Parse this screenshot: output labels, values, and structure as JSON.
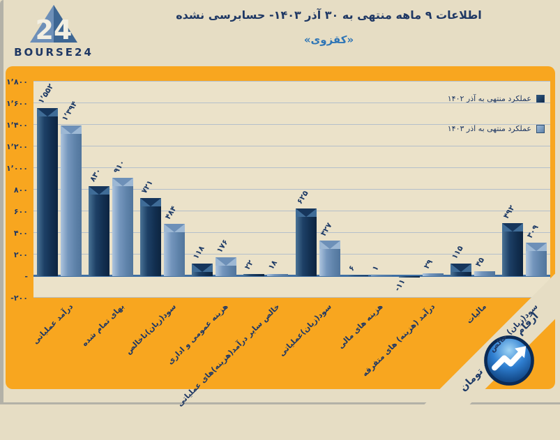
{
  "header": {
    "title": "اطلاعات ۹  ماهه منتهی به ۳۰ آذر ۱۴۰۳- حسابرسی نشده",
    "subtitle": "«کقزوی»",
    "logo_brand": "BOURSE24",
    "logo_mark": "24"
  },
  "chart_data": {
    "type": "bar",
    "title": "اطلاعات ۹ ماهه منتهی به ۳۰ آذر ۱۴۰۳- حسابرسی نشده «کقزوی»",
    "units_note": "ارقام به میلیارد تومان",
    "categories": [
      "درآمد عملیاتی",
      "بهای تمام شده",
      "سود(زیان)ناخالص",
      "هزینه عمومی و اداری",
      "خالص سایر درآمد(هزینه)های عملیاتی",
      "سود(زیان)عملیاتی",
      "هزینه های مالی",
      "درآمد (هزینه) های متفرقه",
      "مالیات",
      "سود(زیان) خالص"
    ],
    "series": [
      {
        "name": "عملکرد منتهی به آذر ۱۴۰۲",
        "color": "#16365C",
        "values": [
          1552,
          830,
          721,
          118,
          22,
          625,
          6,
          -11,
          115,
          492
        ],
        "labels": [
          "۱٬۵۵۲",
          "۸۳۰",
          "۷۲۱",
          "۱۱۸",
          "۲۲",
          "۶۲۵",
          "۶",
          "-۱۱",
          "۱۱۵",
          "۴۹۲"
        ]
      },
      {
        "name": "عملکرد منتهی به آذر ۱۴۰۳",
        "color": "#6E92BC",
        "values": [
          1394,
          910,
          484,
          176,
          18,
          327,
          1,
          29,
          45,
          309
        ],
        "labels": [
          "۱٬۳۹۴",
          "۹۱۰",
          "۴۸۴",
          "۱۷۶",
          "۱۸",
          "۳۲۷",
          "۱",
          "۲۹",
          "۴۵",
          "۳۰۹"
        ]
      }
    ],
    "ylim": [
      -200,
      1800
    ],
    "yticks": [
      {
        "v": -200,
        "label": "-۲۰۰"
      },
      {
        "v": 0,
        "label": "-"
      },
      {
        "v": 200,
        "label": "۲۰۰"
      },
      {
        "v": 400,
        "label": "۴۰۰"
      },
      {
        "v": 600,
        "label": "۶۰۰"
      },
      {
        "v": 800,
        "label": "۸۰۰"
      },
      {
        "v": 1000,
        "label": "۱٬۰۰۰"
      },
      {
        "v": 1200,
        "label": "۱٬۲۰۰"
      },
      {
        "v": 1400,
        "label": "۱٬۴۰۰"
      },
      {
        "v": 1600,
        "label": "۱٬۶۰۰"
      },
      {
        "v": 1800,
        "label": "۱٬۸۰۰"
      }
    ],
    "grid": true,
    "legend_position": "top-right"
  },
  "ribbon": {
    "text": "ارقام به میلیارد تومان"
  },
  "colors": {
    "panel_orange": "#F8A61F",
    "plot_beige": "#EBE2C9",
    "page_beige": "#E6DDC4",
    "title_navy": "#1F3864",
    "subtitle_blue": "#2E75B6",
    "zero_axis": "#3e6fa3",
    "gridline": "#b4bfca",
    "series_dark": "#16365C",
    "series_light": "#6E92BC"
  }
}
